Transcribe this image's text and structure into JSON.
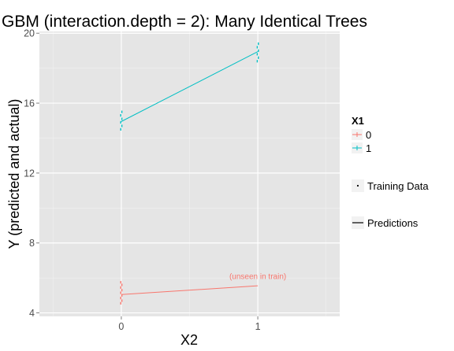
{
  "chart_data": {
    "type": "line",
    "title": "GBM (interaction.depth = 2): Many Identical Trees",
    "xlabel": "X2",
    "ylabel": "Y (predicted and actual)",
    "x_ticks": [
      "0",
      "1"
    ],
    "y_ticks": [
      "4",
      "8",
      "12",
      "16",
      "20"
    ],
    "xlim": [
      -0.6,
      1.6
    ],
    "ylim": [
      3.8,
      20.1
    ],
    "grid": true,
    "background": "#e5e5e5",
    "legend": {
      "title": "X1",
      "position": "right",
      "series_entries": [
        "0",
        "1"
      ],
      "type_entries": [
        "Training Data",
        "Predictions"
      ]
    },
    "series": [
      {
        "name": "0",
        "color": "#f8766d",
        "predictions": [
          {
            "x": 0,
            "y": 5.05
          },
          {
            "x": 1,
            "y": 5.55
          }
        ],
        "training_data": [
          {
            "x": 0,
            "y": 4.55
          },
          {
            "x": 0,
            "y": 4.7
          },
          {
            "x": 0,
            "y": 4.85
          },
          {
            "x": 0,
            "y": 5.0
          },
          {
            "x": 0,
            "y": 5.15
          },
          {
            "x": 0,
            "y": 5.3
          },
          {
            "x": 0,
            "y": 5.45
          },
          {
            "x": 0,
            "y": 5.6
          },
          {
            "x": 0,
            "y": 5.75
          }
        ]
      },
      {
        "name": "1",
        "color": "#00bfc4",
        "predictions": [
          {
            "x": 0,
            "y": 14.95
          },
          {
            "x": 1,
            "y": 18.95
          }
        ],
        "training_data": [
          {
            "x": 0,
            "y": 14.5
          },
          {
            "x": 0,
            "y": 14.7
          },
          {
            "x": 0,
            "y": 14.9
          },
          {
            "x": 0,
            "y": 15.1
          },
          {
            "x": 0,
            "y": 15.3
          },
          {
            "x": 0,
            "y": 15.5
          },
          {
            "x": 1,
            "y": 18.4
          },
          {
            "x": 1,
            "y": 18.6
          },
          {
            "x": 1,
            "y": 18.8
          },
          {
            "x": 1,
            "y": 19.0
          },
          {
            "x": 1,
            "y": 19.2
          },
          {
            "x": 1,
            "y": 19.4
          }
        ]
      }
    ],
    "annotations": [
      {
        "text": "(unseen in train)",
        "x": 1,
        "y": 5.95,
        "color": "#f8766d"
      }
    ]
  }
}
